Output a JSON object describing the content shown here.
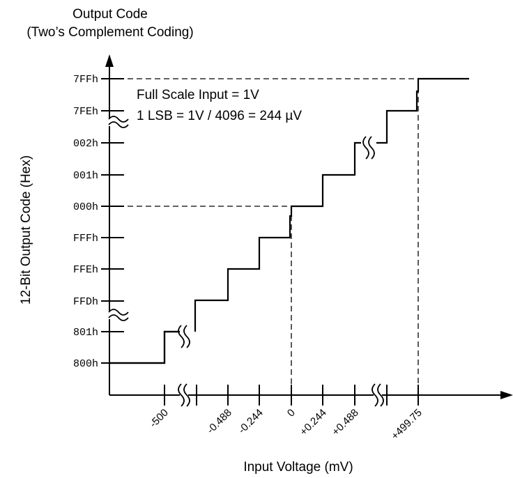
{
  "header": {
    "title": "Output Code",
    "subtitle": "(Two’s Complement Coding)"
  },
  "y_axis": {
    "label": "12-Bit Output Code (Hex)",
    "ticks": [
      "7FFh",
      "7FEh",
      "002h",
      "001h",
      "000h",
      "FFFh",
      "FFEh",
      "FFDh",
      "801h",
      "800h"
    ]
  },
  "x_axis": {
    "label": "Input Voltage (mV)",
    "ticks": [
      "-500",
      "-0.488",
      "-0.244",
      "0",
      "+0.244",
      "+0.488",
      "+499.75"
    ]
  },
  "notes": [
    "Full Scale Input = 1V",
    "1 LSB = 1V / 4096 = 244 µV"
  ]
}
